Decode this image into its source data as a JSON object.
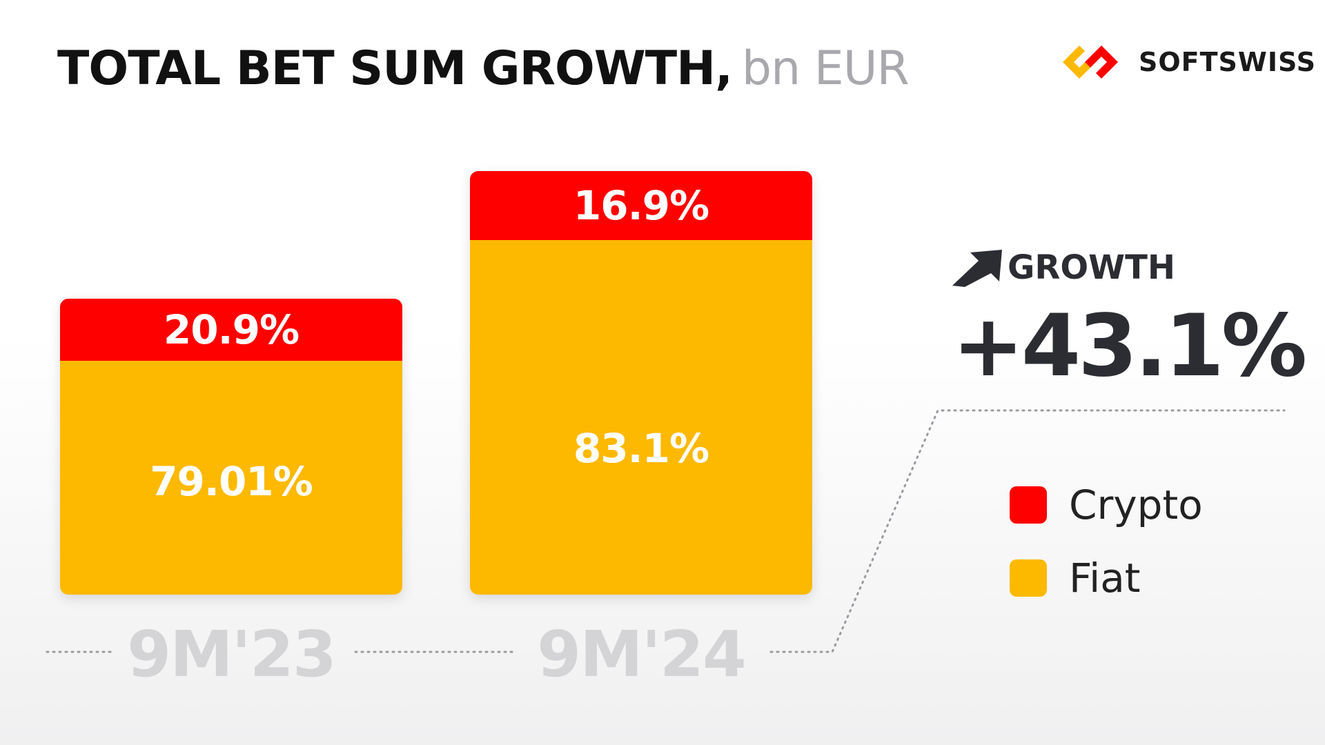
{
  "chart_data": {
    "type": "bar",
    "stacked": true,
    "title": "TOTAL BET SUM GROWTH,",
    "unit": "bn EUR",
    "categories": [
      "9M'23",
      "9M'24"
    ],
    "series": [
      {
        "name": "Fiat",
        "color": "#fdb900",
        "values": [
          79.01,
          83.1
        ],
        "labels": [
          "79.01%",
          "83.1%"
        ]
      },
      {
        "name": "Crypto",
        "color": "#fe0000",
        "values": [
          20.9,
          16.9
        ],
        "labels": [
          "20.9%",
          "16.9%"
        ]
      }
    ],
    "relative_totals": [
      1.0,
      1.431
    ],
    "growth_label": "GROWTH",
    "growth_value": "+43.1%",
    "legend": [
      "Crypto",
      "Fiat"
    ],
    "legend_position": "right"
  },
  "brand": {
    "name": "SOFTSWISS"
  }
}
